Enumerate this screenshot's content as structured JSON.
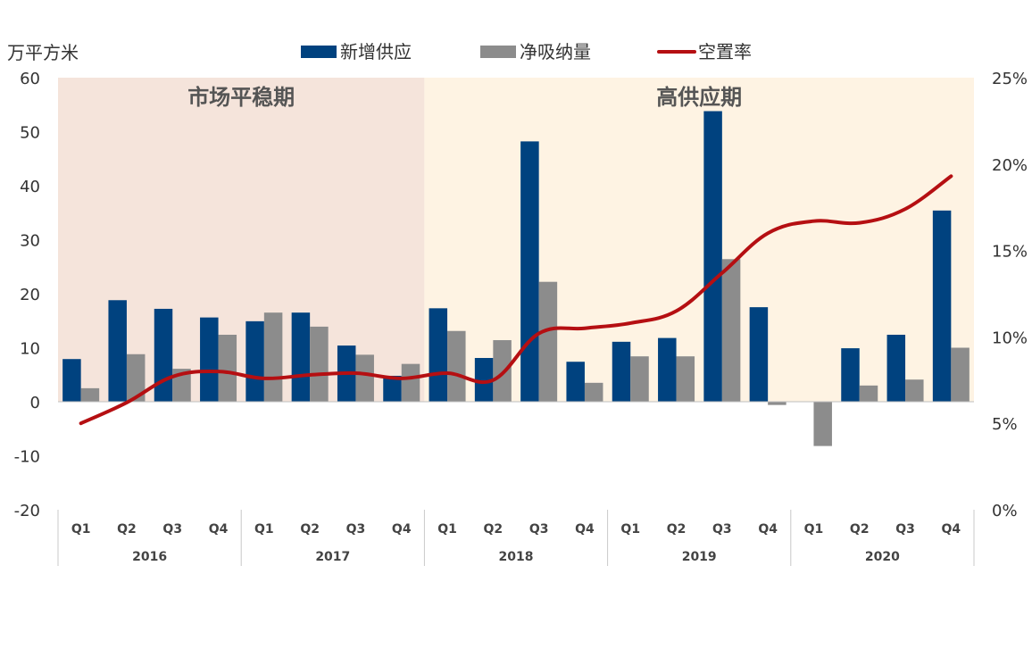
{
  "chart_data": {
    "type": "bar",
    "unit_label": "万平方米",
    "legend": [
      {
        "name": "新增供应",
        "kind": "bar",
        "color": "#00427F"
      },
      {
        "name": "净吸纳量",
        "kind": "bar",
        "color": "#8C8C8C"
      },
      {
        "name": "空置率",
        "kind": "line",
        "color": "#B50F12"
      }
    ],
    "regions": [
      {
        "label": "市场平稳期",
        "start_index": 0,
        "end_index": 7,
        "color": "#F5E4DB"
      },
      {
        "label": "高供应期",
        "start_index": 8,
        "end_index": 19,
        "color": "#FEF3E3"
      }
    ],
    "categories": [
      "Q1",
      "Q2",
      "Q3",
      "Q4",
      "Q1",
      "Q2",
      "Q3",
      "Q4",
      "Q1",
      "Q2",
      "Q3",
      "Q4",
      "Q1",
      "Q2",
      "Q3",
      "Q4",
      "Q1",
      "Q2",
      "Q3",
      "Q4"
    ],
    "years": [
      "2016",
      "2017",
      "2018",
      "2019",
      "2020"
    ],
    "series": [
      {
        "name": "新增供应",
        "axis": "left",
        "values": [
          7.9,
          18.8,
          17.2,
          15.6,
          14.9,
          16.5,
          10.4,
          4.8,
          17.3,
          8.1,
          48.2,
          7.4,
          11.1,
          11.8,
          53.8,
          17.5,
          0,
          9.9,
          12.4,
          35.4
        ]
      },
      {
        "name": "净吸纳量",
        "axis": "left",
        "values": [
          2.5,
          8.8,
          6.1,
          12.4,
          16.5,
          13.9,
          8.7,
          7.0,
          13.1,
          11.4,
          22.2,
          3.5,
          8.4,
          8.4,
          26.4,
          -0.6,
          -8.2,
          3.0,
          4.1,
          10.0
        ]
      },
      {
        "name": "空置率",
        "axis": "right",
        "values": [
          5.0,
          6.2,
          7.7,
          8.0,
          7.6,
          7.8,
          7.9,
          7.6,
          7.9,
          7.5,
          10.2,
          10.5,
          10.8,
          11.5,
          13.7,
          16.0,
          16.7,
          16.6,
          17.4,
          19.3
        ]
      }
    ],
    "y_left": {
      "min": -20,
      "max": 60,
      "ticks": [
        "60",
        "50",
        "40",
        "30",
        "20",
        "10",
        "0",
        "-10",
        "-20"
      ]
    },
    "y_right": {
      "min": 0,
      "max": 25,
      "ticks": [
        "25%",
        "20%",
        "15%",
        "10%",
        "5%",
        "0%"
      ]
    },
    "grid": false
  }
}
